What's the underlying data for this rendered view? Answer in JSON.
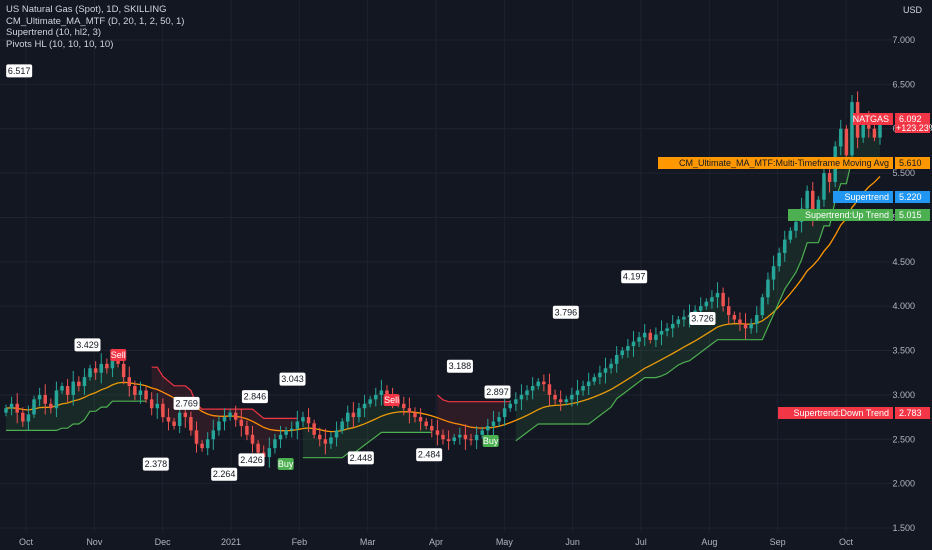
{
  "legend": {
    "symbol": "US Natural Gas (Spot), 1D, SKILLING",
    "indicator1": "CM_Ultimate_MA_MTF (D, 20, 1, 2, 50, 1)",
    "indicator2": "Supertrend (10, hl2, 3)",
    "indicator3": "Pivots HL (10, 10, 10, 10)"
  },
  "currency": "USD",
  "chart_data": {
    "type": "candlestick",
    "x_ticks": [
      "Oct",
      "Nov",
      "Dec",
      "2021",
      "Feb",
      "Mar",
      "Apr",
      "May",
      "Jun",
      "Jul",
      "Aug",
      "Sep",
      "Oct"
    ],
    "y_ticks": [
      "7.000",
      "6.500",
      "6.000",
      "5.500",
      "5.000",
      "4.500",
      "4.000",
      "3.500",
      "3.000",
      "2.500",
      "2.000",
      "1.500"
    ],
    "ylim": [
      1.5,
      7.0
    ],
    "series": [
      {
        "name": "NATGAS",
        "last": "6.092",
        "change": "+123.23%",
        "color": "#f23645"
      },
      {
        "name": "CM_Ultimate_MA_MTF:Multi-Timeframe Moving Avg",
        "last": "5.610",
        "color": "#ff9800"
      },
      {
        "name": "Supertrend",
        "last": "5.220",
        "color": "#2196f3"
      },
      {
        "name": "Supertrend:Up Trend",
        "last": "5.015",
        "color": "#4caf50"
      },
      {
        "name": "Supertrend:Down Trend",
        "last": "2.783",
        "color": "#f23645"
      }
    ],
    "closes": [
      2.85,
      2.9,
      2.8,
      2.7,
      2.78,
      2.95,
      3.0,
      2.9,
      2.85,
      3.05,
      3.1,
      3.0,
      3.15,
      3.1,
      3.2,
      3.3,
      3.25,
      3.35,
      3.3,
      3.42,
      3.35,
      3.2,
      3.1,
      3.0,
      3.05,
      2.95,
      2.85,
      2.9,
      2.75,
      2.7,
      2.65,
      2.8,
      2.75,
      2.6,
      2.45,
      2.4,
      2.5,
      2.6,
      2.7,
      2.75,
      2.8,
      2.72,
      2.65,
      2.55,
      2.45,
      2.35,
      2.3,
      2.4,
      2.5,
      2.55,
      2.6,
      2.62,
      2.7,
      2.75,
      2.68,
      2.55,
      2.5,
      2.45,
      2.52,
      2.6,
      2.7,
      2.8,
      2.75,
      2.85,
      2.9,
      2.95,
      3.0,
      3.05,
      2.98,
      2.95,
      2.9,
      2.85,
      2.8,
      2.75,
      2.7,
      2.65,
      2.6,
      2.55,
      2.5,
      2.48,
      2.52,
      2.55,
      2.5,
      2.49,
      2.55,
      2.6,
      2.65,
      2.7,
      2.75,
      2.85,
      2.9,
      2.95,
      3.0,
      3.05,
      3.1,
      3.15,
      3.12,
      3.0,
      2.95,
      2.92,
      2.95,
      3.0,
      3.05,
      3.1,
      3.15,
      3.2,
      3.25,
      3.3,
      3.35,
      3.45,
      3.5,
      3.55,
      3.6,
      3.65,
      3.7,
      3.62,
      3.68,
      3.72,
      3.75,
      3.8,
      3.85,
      3.88,
      3.9,
      3.95,
      4.0,
      4.05,
      4.1,
      4.15,
      4.0,
      3.9,
      3.85,
      3.8,
      3.75,
      3.8,
      3.9,
      4.1,
      4.3,
      4.45,
      4.6,
      4.75,
      4.85,
      4.95,
      5.1,
      5.3,
      5.0,
      5.2,
      5.5,
      5.4,
      5.8,
      6.0,
      5.7,
      6.3,
      5.9,
      6.1,
      6.0,
      5.9,
      6.09
    ],
    "annotations": {
      "pivots": [
        {
          "value": "3.429",
          "x": "Nov"
        },
        {
          "value": "2.378",
          "x": "Dec"
        },
        {
          "value": "2.769",
          "x": "Dec"
        },
        {
          "value": "2.264",
          "x": "2021"
        },
        {
          "value": "2.846",
          "x": "2021"
        },
        {
          "value": "2.426",
          "x": "Jan"
        },
        {
          "value": "3.043",
          "x": "Feb"
        },
        {
          "value": "2.448",
          "x": "Mar"
        },
        {
          "value": "2.484",
          "x": "Apr"
        },
        {
          "value": "3.188",
          "x": "Apr"
        },
        {
          "value": "2.897",
          "x": "May"
        },
        {
          "value": "3.796",
          "x": "Jun"
        },
        {
          "value": "4.197",
          "x": "Jul"
        },
        {
          "value": "3.726",
          "x": "Aug"
        },
        {
          "value": "6.517",
          "x": "Oct"
        }
      ],
      "signals": [
        {
          "label": "Sell",
          "x": "Nov"
        },
        {
          "label": "Buy",
          "x": "2021"
        },
        {
          "label": "Sell",
          "x": "Mar"
        },
        {
          "label": "Buy",
          "x": "Apr"
        }
      ]
    }
  }
}
